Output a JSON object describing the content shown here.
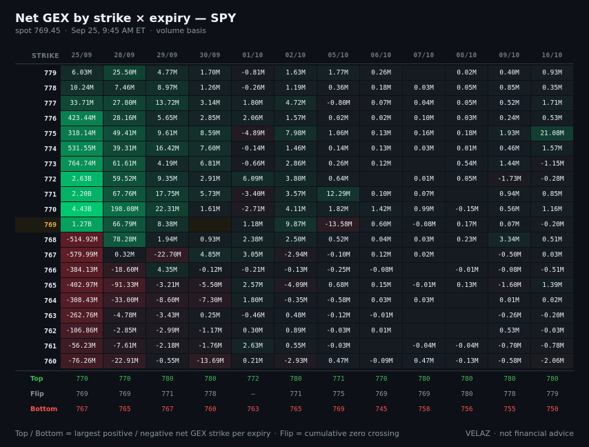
{
  "header": {
    "title": "Net GEX by strike × expiry — SPY",
    "spot": "spot 769.45",
    "time": "Sep 25, 9:45 AM ET",
    "basis": "volume basis"
  },
  "footer": {
    "note_a": "Top / Bottom = largest positive / negative net GEX strike per expiry",
    "note_b": "Flip = cumulative zero crossing",
    "brand": "VELAZ",
    "disclaimer": "not financial advice"
  },
  "colors": {
    "positive": "#3fb950",
    "negative": "#f85149",
    "spot": "#e3b341",
    "background": "#0d1117"
  },
  "chart_data": {
    "type": "heatmap",
    "row_header": "STRIKE",
    "spot_strike": "769",
    "expiries": [
      "25/09",
      "28/09",
      "29/09",
      "30/09",
      "01/10",
      "02/10",
      "05/10",
      "06/10",
      "07/10",
      "08/10",
      "09/10",
      "16/10"
    ],
    "rows": [
      {
        "strike": "779",
        "cells": [
          "6.03M",
          "25.50M",
          "4.77M",
          "1.70M",
          "-0.81M",
          "1.63M",
          "1.77M",
          "0.26M",
          "",
          "0.02M",
          "0.40M",
          "0.93M"
        ]
      },
      {
        "strike": "778",
        "cells": [
          "10.24M",
          "7.46M",
          "8.97M",
          "1.26M",
          "-0.26M",
          "1.19M",
          "0.36M",
          "0.18M",
          "0.03M",
          "0.05M",
          "0.85M",
          "0.35M"
        ]
      },
      {
        "strike": "777",
        "cells": [
          "33.71M",
          "27.80M",
          "13.72M",
          "3.14M",
          "1.80M",
          "4.72M",
          "-0.80M",
          "0.07M",
          "0.04M",
          "0.05M",
          "0.52M",
          "1.71M"
        ]
      },
      {
        "strike": "776",
        "cells": [
          "423.44M",
          "28.16M",
          "5.65M",
          "2.85M",
          "2.06M",
          "1.57M",
          "0.02M",
          "0.02M",
          "0.10M",
          "0.03M",
          "0.24M",
          "0.53M"
        ]
      },
      {
        "strike": "775",
        "cells": [
          "318.14M",
          "49.41M",
          "9.61M",
          "8.59M",
          "-4.89M",
          "7.98M",
          "1.06M",
          "0.13M",
          "0.16M",
          "0.18M",
          "1.93M",
          "21.08M"
        ]
      },
      {
        "strike": "774",
        "cells": [
          "531.55M",
          "39.31M",
          "16.42M",
          "7.60M",
          "-0.14M",
          "1.46M",
          "0.14M",
          "0.13M",
          "0.03M",
          "0.01M",
          "0.46M",
          "1.57M"
        ]
      },
      {
        "strike": "773",
        "cells": [
          "764.74M",
          "61.61M",
          "4.19M",
          "6.81M",
          "-0.66M",
          "2.86M",
          "0.26M",
          "0.12M",
          "",
          "0.54M",
          "1.44M",
          "-1.15M"
        ]
      },
      {
        "strike": "772",
        "cells": [
          "2.63B",
          "59.52M",
          "9.35M",
          "2.91M",
          "6.09M",
          "3.80M",
          "0.64M",
          "",
          "0.01M",
          "0.05M",
          "-1.73M",
          "-0.28M"
        ]
      },
      {
        "strike": "771",
        "cells": [
          "2.20B",
          "67.76M",
          "17.75M",
          "5.73M",
          "-3.40M",
          "3.57M",
          "12.29M",
          "0.10M",
          "0.07M",
          "",
          "0.94M",
          "0.85M"
        ]
      },
      {
        "strike": "770",
        "cells": [
          "4.43B",
          "198.08M",
          "22.31M",
          "1.61M",
          "-2.71M",
          "4.11M",
          "1.82M",
          "1.42M",
          "0.99M",
          "-0.15M",
          "0.56M",
          "1.16M"
        ]
      },
      {
        "strike": "769",
        "cells": [
          "1.27B",
          "66.79M",
          "8.38M",
          "",
          "1.18M",
          "9.87M",
          "-13.58M",
          "0.60M",
          "-0.08M",
          "0.17M",
          "0.07M",
          "-0.20M"
        ]
      },
      {
        "strike": "768",
        "cells": [
          "-514.92M",
          "78.28M",
          "1.94M",
          "0.93M",
          "2.38M",
          "2.50M",
          "0.52M",
          "0.04M",
          "0.03M",
          "0.23M",
          "3.34M",
          "0.51M"
        ]
      },
      {
        "strike": "767",
        "cells": [
          "-579.99M",
          "0.32M",
          "-22.70M",
          "4.85M",
          "3.05M",
          "-2.94M",
          "-0.10M",
          "0.12M",
          "0.02M",
          "",
          "-0.50M",
          "0.03M"
        ]
      },
      {
        "strike": "766",
        "cells": [
          "-384.13M",
          "-18.60M",
          "4.35M",
          "-0.12M",
          "-0.21M",
          "-0.13M",
          "-0.25M",
          "-0.08M",
          "",
          "-0.01M",
          "-0.08M",
          "-0.51M"
        ]
      },
      {
        "strike": "765",
        "cells": [
          "-402.97M",
          "-91.33M",
          "-3.21M",
          "-5.50M",
          "2.57M",
          "-4.09M",
          "0.68M",
          "0.15M",
          "-0.01M",
          "0.13M",
          "-1.60M",
          "1.39M"
        ]
      },
      {
        "strike": "764",
        "cells": [
          "-308.43M",
          "-33.00M",
          "-8.60M",
          "-7.30M",
          "1.80M",
          "-0.35M",
          "-0.58M",
          "0.03M",
          "0.03M",
          "",
          "0.01M",
          "0.02M"
        ]
      },
      {
        "strike": "763",
        "cells": [
          "-262.76M",
          "-4.78M",
          "-3.43M",
          "0.25M",
          "-0.46M",
          "0.48M",
          "-0.12M",
          "-0.01M",
          "",
          "",
          "-0.26M",
          "-0.20M"
        ]
      },
      {
        "strike": "762",
        "cells": [
          "-106.86M",
          "-2.85M",
          "-2.99M",
          "-1.17M",
          "0.30M",
          "0.89M",
          "-0.03M",
          "0.01M",
          "",
          "",
          "0.53M",
          "-0.03M"
        ]
      },
      {
        "strike": "761",
        "cells": [
          "-56.23M",
          "-7.61M",
          "-2.18M",
          "-1.76M",
          "2.63M",
          "0.55M",
          "-0.03M",
          "",
          "-0.04M",
          "-0.04M",
          "-0.70M",
          "-0.78M"
        ]
      },
      {
        "strike": "760",
        "cells": [
          "-76.26M",
          "-22.91M",
          "-0.55M",
          "-13.69M",
          "0.21M",
          "-2.93M",
          "0.47M",
          "-0.09M",
          "0.47M",
          "-0.13M",
          "-0.58M",
          "-2.06M"
        ]
      }
    ],
    "summary": [
      {
        "label": "Top",
        "values": [
          "770",
          "770",
          "780",
          "780",
          "772",
          "780",
          "771",
          "770",
          "780",
          "780",
          "780",
          "780"
        ]
      },
      {
        "label": "Flip",
        "values": [
          "769",
          "769",
          "771",
          "778",
          "—",
          "771",
          "775",
          "769",
          "769",
          "780",
          "778",
          "779"
        ]
      },
      {
        "label": "Bottom",
        "values": [
          "767",
          "765",
          "767",
          "760",
          "763",
          "765",
          "769",
          "745",
          "758",
          "756",
          "755",
          "750"
        ]
      }
    ]
  }
}
